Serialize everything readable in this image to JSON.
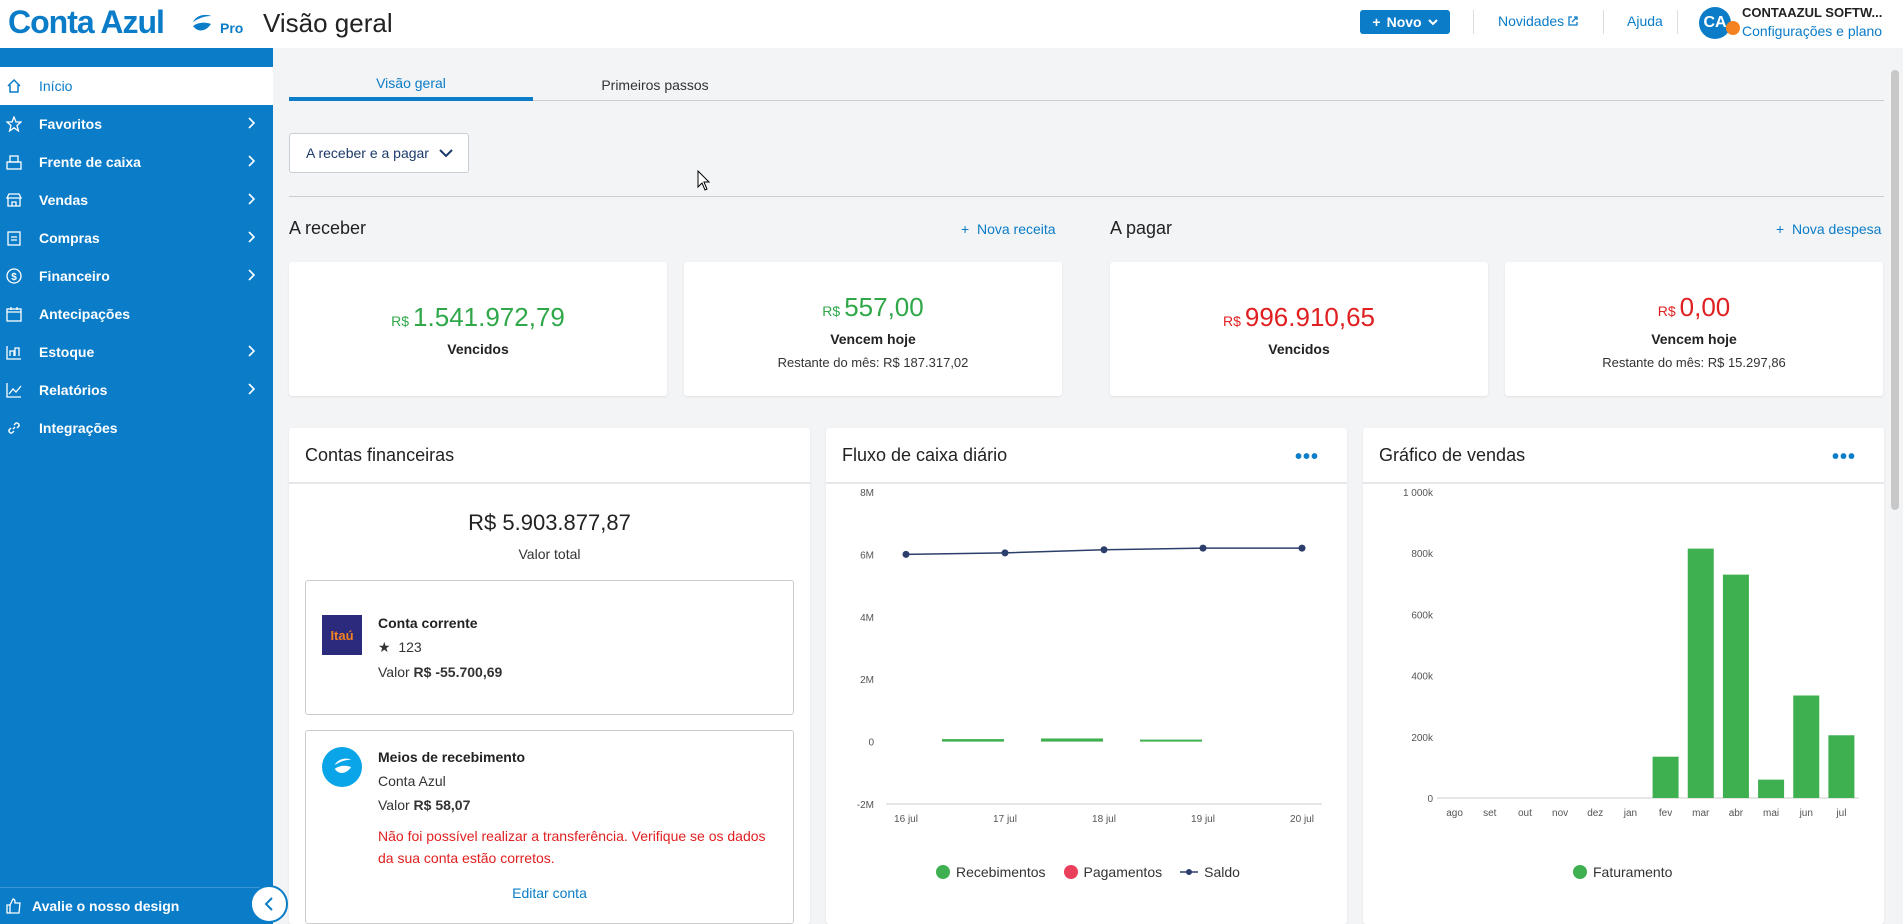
{
  "header": {
    "brand": "Conta Azul",
    "plan": "Pro",
    "page_title": "Visão geral",
    "new_button": "Novo",
    "news_link": "Novidades",
    "help_link": "Ajuda",
    "avatar_initials": "CA",
    "company_name": "CONTAAZUL SOFTW...",
    "company_link": "Configurações e plano"
  },
  "sidebar": {
    "items": [
      {
        "label": "Início",
        "icon": "home-icon"
      },
      {
        "label": "Favoritos",
        "icon": "star-icon"
      },
      {
        "label": "Frente de caixa",
        "icon": "cash-register-icon"
      },
      {
        "label": "Vendas",
        "icon": "store-icon"
      },
      {
        "label": "Compras",
        "icon": "clipboard-icon"
      },
      {
        "label": "Financeiro",
        "icon": "dollar-icon"
      },
      {
        "label": "Antecipações",
        "icon": "calendar-money-icon"
      },
      {
        "label": "Estoque",
        "icon": "box-icon"
      },
      {
        "label": "Relatórios",
        "icon": "chart-icon"
      },
      {
        "label": "Integrações",
        "icon": "link-icon"
      }
    ],
    "feedback": "Avalie o nosso design"
  },
  "tabs": [
    "Visão geral",
    "Primeiros passos"
  ],
  "filter": {
    "label": "A receber e a pagar"
  },
  "receivable": {
    "title": "A receber",
    "action": "Nova receita",
    "overdue": {
      "currency": "R$",
      "value": "1.541.972,79",
      "label": "Vencidos"
    },
    "today": {
      "currency": "R$",
      "value": "557,00",
      "label": "Vencem hoje",
      "sub": "Restante do mês: R$ 187.317,02"
    }
  },
  "payable": {
    "title": "A pagar",
    "action": "Nova despesa",
    "overdue": {
      "currency": "R$",
      "value": "996.910,65",
      "label": "Vencidos"
    },
    "today": {
      "currency": "R$",
      "value": "0,00",
      "label": "Vencem hoje",
      "sub": "Restante do mês: R$ 15.297,86"
    }
  },
  "accounts": {
    "title": "Contas financeiras",
    "total": "R$ 5.903.877,87",
    "total_label": "Valor total",
    "items": [
      {
        "name": "Conta corrente",
        "bank_logo": "Itaú",
        "number": "123",
        "value_label": "Valor",
        "value": "R$ -55.700,69"
      },
      {
        "name": "Meios de recebimento",
        "provider": "Conta Azul",
        "value_label": "Valor",
        "value": "R$ 58,07",
        "error": "Não foi possível realizar a transferência. Verifique se os dados da sua conta estão corretos.",
        "edit": "Editar conta"
      }
    ]
  },
  "cashflow": {
    "title": "Fluxo de caixa diário",
    "legend": [
      "Recebimentos",
      "Pagamentos",
      "Saldo"
    ]
  },
  "sales": {
    "title": "Gráfico de vendas",
    "legend": [
      "Faturamento"
    ]
  },
  "colors": {
    "brand": "#0a7cc8",
    "green": "#30a84a",
    "red": "#e02020",
    "navy": "#2c3e6b"
  },
  "chart_data": [
    {
      "type": "line",
      "title": "Fluxo de caixa diário",
      "categories": [
        "16 jul",
        "17 jul",
        "18 jul",
        "19 jul",
        "20 jul"
      ],
      "yticks": [
        "8M",
        "6M",
        "4M",
        "2M",
        "0",
        "-2M"
      ],
      "ylim": [
        -2000000,
        8000000
      ],
      "series": [
        {
          "name": "Recebimentos",
          "type": "bar",
          "values": [
            0,
            80000,
            100000,
            40000,
            0
          ]
        },
        {
          "name": "Pagamentos",
          "type": "bar",
          "values": [
            0,
            0,
            0,
            0,
            0
          ]
        },
        {
          "name": "Saldo",
          "type": "line",
          "values": [
            6000000,
            6050000,
            6150000,
            6200000,
            6200000
          ]
        }
      ],
      "legend": "bottom"
    },
    {
      "type": "bar",
      "title": "Gráfico de vendas",
      "categories": [
        "ago",
        "set",
        "out",
        "nov",
        "dez",
        "jan",
        "fev",
        "mar",
        "abr",
        "mai",
        "jun",
        "jul"
      ],
      "yticks": [
        "1 000k",
        "800k",
        "600k",
        "400k",
        "200k",
        "0"
      ],
      "ylim": [
        0,
        1000000
      ],
      "series": [
        {
          "name": "Faturamento",
          "values": [
            0,
            0,
            0,
            0,
            0,
            0,
            135000,
            815000,
            730000,
            60000,
            335000,
            205000
          ]
        }
      ],
      "legend": "bottom"
    }
  ]
}
